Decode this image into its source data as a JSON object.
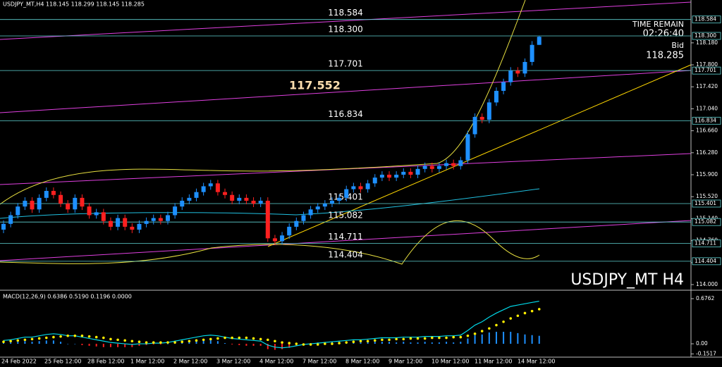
{
  "chart_data": [
    {
      "type": "candlestick",
      "title": "USDJPY_MT,H4  118.145 118.299 118.145 118.285",
      "watermark": "USDJPY_MT H4",
      "time_remain_label": "TIME REMAIN",
      "time_remain": "02:26:40",
      "bid_label": "Bid",
      "trendline_label": 117.552,
      "up_color": "#1e90ff",
      "down_color": "#ff2020",
      "level_color": "#5fd3d3",
      "x_labels": [
        "24 Feb 2022",
        "25 Feb 12:00",
        "28 Feb 12:00",
        "1 Mar 12:00",
        "2 Mar 12:00",
        "3 Mar 12:00",
        "4 Mar 12:00",
        "7 Mar 12:00",
        "8 Mar 12:00",
        "9 Mar 12:00",
        "10 Mar 12:00",
        "11 Mar 12:00",
        "14 Mar 12:00"
      ],
      "open": [
        114.95,
        115.05,
        115.2,
        115.35,
        115.45,
        115.3,
        115.5,
        115.62,
        115.55,
        115.4,
        115.3,
        115.5,
        115.35,
        115.2,
        115.25,
        115.1,
        115.0,
        115.15,
        115.0,
        114.95,
        115.05,
        115.1,
        115.15,
        115.1,
        115.2,
        115.35,
        115.45,
        115.5,
        115.6,
        115.7,
        115.75,
        115.6,
        115.55,
        115.45,
        115.5,
        115.45,
        115.4,
        115.45,
        114.8,
        114.75,
        114.85,
        115.0,
        115.1,
        115.2,
        115.3,
        115.35,
        115.4,
        115.45,
        115.5,
        115.65,
        115.7,
        115.65,
        115.75,
        115.85,
        115.9,
        115.85,
        115.9,
        115.95,
        115.9,
        116.0,
        116.05,
        116.0,
        116.05,
        116.1,
        116.05,
        116.15,
        116.6,
        116.9,
        116.85,
        117.15,
        117.35,
        117.5,
        117.7,
        117.65,
        117.85,
        118.145
      ],
      "high": [
        115.11,
        115.26,
        115.41,
        115.51,
        115.51,
        115.56,
        115.68,
        115.68,
        115.61,
        115.46,
        115.56,
        115.56,
        115.41,
        115.31,
        115.31,
        115.16,
        115.21,
        115.21,
        115.06,
        115.11,
        115.16,
        115.21,
        115.21,
        115.26,
        115.41,
        115.51,
        115.56,
        115.66,
        115.76,
        115.81,
        115.81,
        115.66,
        115.61,
        115.56,
        115.56,
        115.51,
        115.51,
        115.51,
        114.86,
        114.91,
        115.06,
        115.16,
        115.26,
        115.36,
        115.41,
        115.46,
        115.51,
        115.56,
        115.71,
        115.76,
        115.76,
        115.81,
        115.91,
        115.96,
        115.96,
        115.96,
        116.01,
        116.01,
        116.06,
        116.11,
        116.11,
        116.11,
        116.16,
        116.16,
        116.21,
        116.66,
        116.96,
        116.96,
        117.21,
        117.41,
        117.56,
        117.76,
        117.76,
        117.91,
        118.21,
        118.299
      ],
      "low": [
        114.89,
        114.99,
        115.14,
        115.29,
        115.24,
        115.24,
        115.44,
        115.49,
        115.34,
        115.24,
        115.24,
        115.29,
        115.14,
        115.14,
        115.04,
        114.94,
        114.94,
        114.94,
        114.89,
        114.89,
        114.99,
        115.04,
        115.04,
        115.04,
        115.14,
        115.29,
        115.39,
        115.44,
        115.54,
        115.64,
        115.54,
        115.49,
        115.39,
        115.39,
        115.39,
        115.34,
        115.34,
        114.74,
        114.69,
        114.69,
        114.79,
        114.94,
        115.04,
        115.14,
        115.24,
        115.29,
        115.34,
        115.39,
        115.44,
        115.59,
        115.59,
        115.59,
        115.69,
        115.79,
        115.79,
        115.79,
        115.84,
        115.84,
        115.84,
        115.94,
        115.94,
        115.94,
        115.99,
        115.99,
        115.99,
        116.09,
        116.54,
        116.79,
        116.79,
        117.09,
        117.29,
        117.44,
        117.59,
        117.59,
        117.79,
        118.145
      ],
      "close": [
        115.05,
        115.2,
        115.35,
        115.45,
        115.3,
        115.5,
        115.62,
        115.55,
        115.4,
        115.3,
        115.5,
        115.35,
        115.2,
        115.25,
        115.1,
        115.0,
        115.15,
        115.0,
        114.95,
        115.05,
        115.1,
        115.15,
        115.1,
        115.2,
        115.35,
        115.45,
        115.5,
        115.6,
        115.7,
        115.75,
        115.6,
        115.55,
        115.45,
        115.5,
        115.45,
        115.4,
        115.45,
        114.8,
        114.75,
        114.85,
        115.0,
        115.1,
        115.2,
        115.3,
        115.35,
        115.4,
        115.45,
        115.5,
        115.65,
        115.7,
        115.65,
        115.75,
        115.85,
        115.9,
        115.85,
        115.9,
        115.95,
        115.9,
        116.0,
        116.05,
        116.0,
        116.05,
        116.1,
        116.05,
        116.15,
        116.6,
        116.9,
        116.85,
        117.15,
        117.35,
        117.5,
        117.7,
        117.65,
        117.85,
        118.145,
        118.285
      ],
      "ylim": [
        113.927,
        118.921
      ],
      "yticks": [
        {
          "value": 118.18,
          "label": "118.180"
        },
        {
          "value": 117.8,
          "label": "117.800"
        },
        {
          "value": 117.42,
          "label": "117.420"
        },
        {
          "value": 117.04,
          "label": "117.040"
        },
        {
          "value": 116.66,
          "label": "116.660"
        },
        {
          "value": 116.28,
          "label": "116.280"
        },
        {
          "value": 115.9,
          "label": "115.900"
        },
        {
          "value": 115.52,
          "label": "115.520"
        },
        {
          "value": 115.14,
          "label": "115.140"
        },
        {
          "value": 114.76,
          "label": "114.760"
        },
        {
          "value": 114.38,
          "label": "114.380"
        },
        {
          "value": 114,
          "label": "114.000"
        }
      ],
      "levels": [
        {
          "value": 118.584,
          "label": "118.584"
        },
        {
          "value": 118.3,
          "label": "118.300"
        },
        {
          "value": 117.701,
          "label": "117.701"
        },
        {
          "value": 116.834,
          "label": "116.834"
        },
        {
          "value": 115.401,
          "label": "115.401"
        },
        {
          "value": 115.082,
          "label": "115.082"
        },
        {
          "value": 114.711,
          "label": "114.711"
        },
        {
          "value": 114.404,
          "label": "114.404"
        }
      ]
    },
    {
      "type": "macd",
      "title": "MACD(12,26,9) 0.6386 0.5190 0.1196 0.0000",
      "ylim": [
        -0.2,
        0.771
      ],
      "yticks": [
        0.6762,
        {
          "value": 0,
          "label": "0.00"
        },
        -0.1517
      ],
      "series": [
        {
          "name": "histogram",
          "color": "#1e90ff",
          "negative_color": "#ff2020",
          "values": [
            0.02,
            0.02,
            0.03,
            0.04,
            0.03,
            0.04,
            0.05,
            0.05,
            0.03,
            0.0,
            0.0,
            -0.02,
            -0.03,
            -0.04,
            -0.05,
            -0.05,
            -0.05,
            -0.05,
            -0.05,
            -0.03,
            -0.02,
            -0.01,
            -0.01,
            0.0,
            0.02,
            0.03,
            0.04,
            0.05,
            0.06,
            0.06,
            0.04,
            0.01,
            -0.01,
            -0.02,
            -0.03,
            -0.03,
            -0.03,
            -0.08,
            -0.09,
            -0.08,
            -0.06,
            -0.03,
            0.0,
            0.01,
            0.02,
            0.02,
            0.03,
            0.03,
            0.03,
            0.03,
            0.02,
            0.03,
            0.03,
            0.03,
            0.03,
            0.02,
            0.03,
            0.02,
            0.02,
            0.03,
            0.02,
            0.02,
            0.03,
            0.02,
            0.03,
            0.08,
            0.13,
            0.14,
            0.17,
            0.18,
            0.18,
            0.18,
            0.16,
            0.14,
            0.13,
            0.1196
          ]
        },
        {
          "name": "macd",
          "color": "#00d8e8",
          "values": [
            0.05,
            0.06,
            0.08,
            0.1,
            0.1,
            0.12,
            0.14,
            0.15,
            0.14,
            0.12,
            0.12,
            0.1,
            0.08,
            0.06,
            0.04,
            0.02,
            0.01,
            0.0,
            -0.01,
            0.0,
            0.0,
            0.01,
            0.01,
            0.02,
            0.04,
            0.06,
            0.08,
            0.1,
            0.12,
            0.13,
            0.12,
            0.1,
            0.08,
            0.07,
            0.06,
            0.05,
            0.04,
            -0.02,
            -0.05,
            -0.06,
            -0.05,
            -0.03,
            -0.01,
            0.0,
            0.01,
            0.02,
            0.03,
            0.04,
            0.05,
            0.06,
            0.06,
            0.07,
            0.08,
            0.09,
            0.09,
            0.09,
            0.1,
            0.1,
            0.1,
            0.11,
            0.11,
            0.11,
            0.12,
            0.12,
            0.13,
            0.2,
            0.28,
            0.33,
            0.4,
            0.46,
            0.51,
            0.56,
            0.58,
            0.6,
            0.62,
            0.6386
          ]
        },
        {
          "name": "signal",
          "color": "#ffee00",
          "values": [
            0.03,
            0.04,
            0.05,
            0.06,
            0.07,
            0.08,
            0.09,
            0.1,
            0.11,
            0.12,
            0.12,
            0.12,
            0.11,
            0.1,
            0.09,
            0.07,
            0.06,
            0.05,
            0.04,
            0.03,
            0.02,
            0.02,
            0.02,
            0.02,
            0.02,
            0.03,
            0.04,
            0.05,
            0.06,
            0.07,
            0.08,
            0.09,
            0.09,
            0.09,
            0.09,
            0.08,
            0.07,
            0.06,
            0.04,
            0.02,
            0.01,
            0.0,
            -0.01,
            -0.01,
            -0.01,
            0.0,
            0.0,
            0.01,
            0.02,
            0.03,
            0.04,
            0.04,
            0.05,
            0.06,
            0.06,
            0.07,
            0.07,
            0.08,
            0.08,
            0.08,
            0.09,
            0.09,
            0.09,
            0.1,
            0.1,
            0.12,
            0.15,
            0.19,
            0.23,
            0.28,
            0.33,
            0.38,
            0.42,
            0.46,
            0.49,
            0.519
          ]
        }
      ]
    }
  ]
}
